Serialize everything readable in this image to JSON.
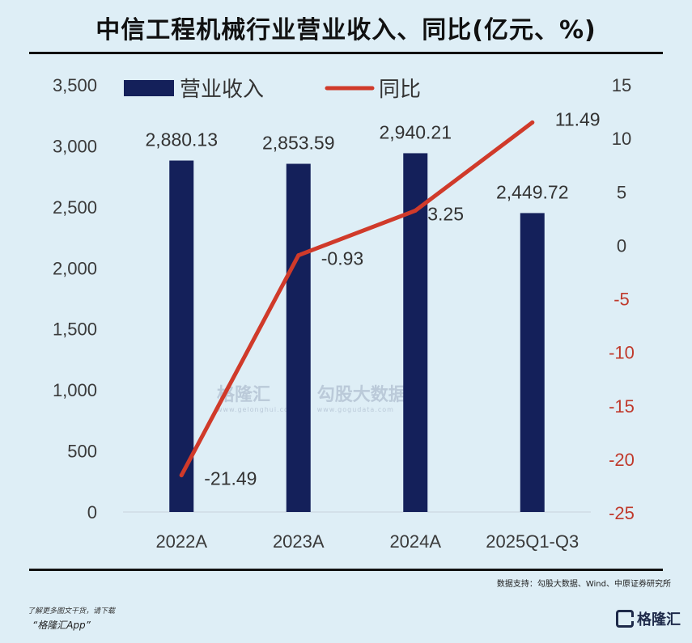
{
  "title": "中信工程机械行业营业收入、同比(亿元、%)",
  "source": "数据支持：勾股大数据、Wind、中原证券研究所",
  "footer": {
    "line1": "了解更多图文干货，请下载",
    "line2": "“格隆汇App”",
    "brand": "格隆汇"
  },
  "watermark": {
    "left": "格隆汇",
    "left_sub": "www.gelonghui.com",
    "right": "勾股大数据",
    "right_sub": "www.gogudata.com"
  },
  "chart_data": {
    "type": "bar",
    "categories": [
      "2022A",
      "2023A",
      "2024A",
      "2025Q1-Q3"
    ],
    "series": [
      {
        "name": "营业收入",
        "type": "bar",
        "axis": "left",
        "color": "#14205a",
        "values": [
          2880.13,
          2853.59,
          2940.21,
          2449.72
        ],
        "labels": [
          "2,880.13",
          "2,853.59",
          "2,940.21",
          "2,449.72"
        ]
      },
      {
        "name": "同比",
        "type": "line",
        "axis": "right",
        "color": "#d03a2a",
        "values": [
          -21.49,
          -0.93,
          3.25,
          11.49
        ],
        "labels": [
          "-21.49",
          "-0.93",
          "3.25",
          "11.49"
        ]
      }
    ],
    "y_left": {
      "ylim": [
        0,
        3500
      ],
      "ticks": [
        "0",
        "500",
        "1,000",
        "1,500",
        "2,000",
        "2,500",
        "3,000",
        "3,500"
      ]
    },
    "y_right": {
      "ylim": [
        -25,
        15
      ],
      "ticks": [
        "-25",
        "-20",
        "-15",
        "-10",
        "-5",
        "0",
        "5",
        "10",
        "15"
      ]
    },
    "legend": "top-left",
    "grid": false
  }
}
